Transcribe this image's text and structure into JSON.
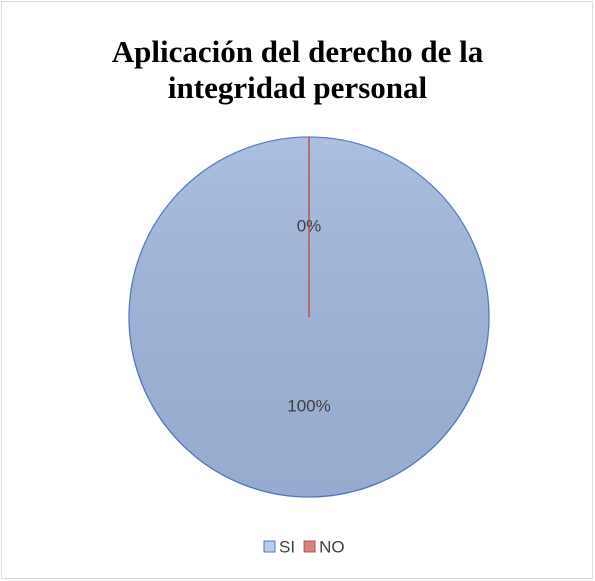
{
  "chart_data": {
    "type": "pie",
    "title": "Aplicación del derecho de la integridad personal",
    "categories": [
      "SI",
      "NO"
    ],
    "values": [
      100,
      0
    ],
    "value_labels": [
      "100%",
      "0%"
    ],
    "colors": [
      "#a0b6dc",
      "#c0504d"
    ],
    "legend": "bottom"
  }
}
